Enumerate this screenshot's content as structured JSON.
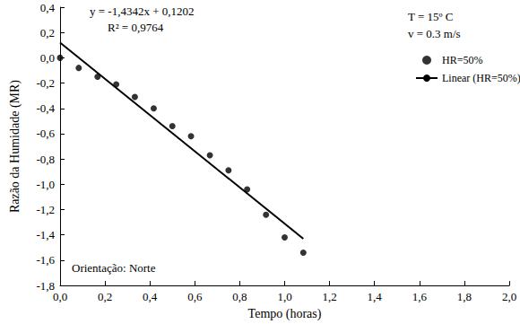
{
  "chart_data": {
    "type": "scatter",
    "x_label": "Tempo (horas)",
    "y_label": "Razão da Humidade (MR)",
    "annotations": [
      "y = -1,4342x + 0,1202",
      "R² = 0,9764",
      "T = 15º C",
      "v = 0.3 m/s",
      "Orientação: Norte"
    ],
    "series": [
      {
        "name": "HR=50%",
        "type": "scatter",
        "marker": "circle",
        "color": "#000000",
        "x": [
          0.0,
          0.083,
          0.167,
          0.25,
          0.333,
          0.417,
          0.5,
          0.583,
          0.667,
          0.75,
          0.833,
          0.917,
          1.0,
          1.083
        ],
        "values": [
          0.0,
          -0.08,
          -0.15,
          -0.21,
          -0.31,
          -0.4,
          -0.54,
          -0.62,
          -0.77,
          -0.89,
          -1.04,
          -1.24,
          -1.42,
          -1.54
        ]
      },
      {
        "name": "Linear (HR=50%)",
        "type": "line",
        "line_style": "solid",
        "color": "#000000",
        "x": [
          0.0,
          1.083
        ],
        "values": [
          0.12,
          -1.43
        ]
      }
    ],
    "xlim": [
      0.0,
      2.0
    ],
    "xticks": [
      {
        "value": 0.0,
        "label": "0,0"
      },
      {
        "value": 0.2,
        "label": "0,2"
      },
      {
        "value": 0.4,
        "label": "0,4"
      },
      {
        "value": 0.6,
        "label": "0,6"
      },
      {
        "value": 0.8,
        "label": "0,8"
      },
      {
        "value": 1.0,
        "label": "1,0"
      },
      {
        "value": 1.2,
        "label": "1,2"
      },
      {
        "value": 1.4,
        "label": "1,4"
      },
      {
        "value": 1.6,
        "label": "1,6"
      },
      {
        "value": 1.8,
        "label": "1,8"
      },
      {
        "value": 2.0,
        "label": "2,0"
      }
    ],
    "ylim": [
      -1.8,
      0.4
    ],
    "yticks": [
      {
        "value": -1.8,
        "label": "-1,8"
      },
      {
        "value": -1.6,
        "label": "-1,6"
      },
      {
        "value": -1.4,
        "label": "-1,4"
      },
      {
        "value": -1.2,
        "label": "-1,2"
      },
      {
        "value": -1.0,
        "label": "-1,0"
      },
      {
        "value": -0.8,
        "label": "-0,8"
      },
      {
        "value": -0.6,
        "label": "-0,6"
      },
      {
        "value": -0.4,
        "label": "-0,4"
      },
      {
        "value": -0.2,
        "label": "-0,2"
      },
      {
        "value": 0.0,
        "label": "0,0"
      },
      {
        "value": 0.2,
        "label": "0,2"
      },
      {
        "value": 0.4,
        "label": "0,4"
      }
    ],
    "grid": false,
    "legend": "upper right"
  }
}
